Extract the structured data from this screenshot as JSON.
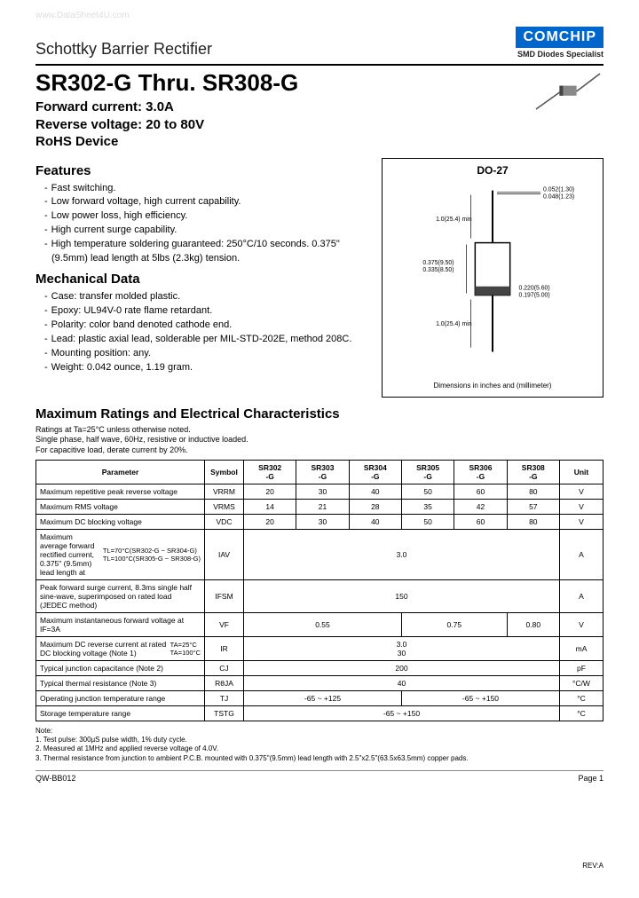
{
  "watermark": "www.DataSheet4U.com",
  "category": "Schottky Barrier Rectifier",
  "logo": "COMCHIP",
  "tagline": "SMD Diodes Specialist",
  "title": "SR302-G Thru. SR308-G",
  "spec1": "Forward current: 3.0A",
  "spec2": "Reverse voltage: 20 to 80V",
  "spec3": "RoHS Device",
  "features_head": "Features",
  "features": [
    "Fast switching.",
    "Low forward voltage, high current capability.",
    "Low power loss, high efficiency.",
    "High current surge capability.",
    "High temperature soldering guaranteed: 250°C/10 seconds. 0.375\" (9.5mm) lead length at 5lbs (2.3kg) tension."
  ],
  "mech_head": "Mechanical Data",
  "mechanical": [
    "Case: transfer molded plastic.",
    "Epoxy: UL94V-0 rate flame retardant.",
    "Polarity: color band denoted cathode end.",
    "Lead: plastic axial lead, solderable per MIL-STD-202E, method 208C.",
    "Mounting position: any.",
    "Weight: 0.042 ounce, 1.19 gram."
  ],
  "package": {
    "title": "DO-27",
    "caption": "Dimensions in inches and (millimeter)",
    "dim_top": "0.052(1.30)\n0.048(1.23)",
    "dim_lead": "1.0(25.4) min",
    "dim_body_h": "0.375(9.50)\n0.335(8.50)",
    "dim_body_w": "0.220(5.60)\n0.197(5.00)"
  },
  "ratings_head": "Maximum Ratings and Electrical Characteristics",
  "ratings_note": "Ratings at Ta=25°C unless otherwise noted.\nSingle phase, half wave, 60Hz, resistive or inductive loaded.\nFor capacitive load, derate current by 20%.",
  "table": {
    "headers": [
      "Parameter",
      "Symbol",
      "SR302\n-G",
      "SR303\n-G",
      "SR304\n-G",
      "SR305\n-G",
      "SR306\n-G",
      "SR308\n-G",
      "Unit"
    ],
    "rows": [
      {
        "param": "Maximum repetitive peak reverse voltage",
        "sym": "VRRM",
        "vals": [
          "20",
          "30",
          "40",
          "50",
          "60",
          "80"
        ],
        "unit": "V"
      },
      {
        "param": "Maximum RMS voltage",
        "sym": "VRMS",
        "vals": [
          "14",
          "21",
          "28",
          "35",
          "42",
          "57"
        ],
        "unit": "V"
      },
      {
        "param": "Maximum DC blocking voltage",
        "sym": "VDC",
        "vals": [
          "20",
          "30",
          "40",
          "50",
          "60",
          "80"
        ],
        "unit": "V"
      },
      {
        "param": "Maximum average forward rectified current, 0.375\" (9.5mm) lead length at",
        "param2": "TL=70°C(SR302-G ~ SR304-G)\nTL=100°C(SR305-G ~ SR308-G)",
        "sym": "IAV",
        "span": "3.0",
        "unit": "A"
      },
      {
        "param": "Peak forward surge current, 8.3ms single half sine-wave, superimposed on rated load (JEDEC method)",
        "sym": "IFSM",
        "span": "150",
        "unit": "A"
      },
      {
        "param": "Maximum instantaneous forward voltage at IF=3A",
        "sym": "VF",
        "vspans": [
          {
            "v": "0.55",
            "c": 3
          },
          {
            "v": "0.75",
            "c": 2
          },
          {
            "v": "0.80",
            "c": 1
          }
        ],
        "unit": "V"
      },
      {
        "param": "Maximum DC reverse current at rated DC blocking voltage (Note 1)",
        "param2": "TA=25°C\nTA=100°C",
        "sym": "IR",
        "span": "3.0\n30",
        "unit": "mA"
      },
      {
        "param": "Typical junction capacitance (Note 2)",
        "sym": "CJ",
        "span": "200",
        "unit": "pF"
      },
      {
        "param": "Typical thermal resistance (Note 3)",
        "sym": "RθJA",
        "span": "40",
        "unit": "°C/W"
      },
      {
        "param": "Operating junction temperature range",
        "sym": "TJ",
        "vspans": [
          {
            "v": "-65 ~ +125",
            "c": 3
          },
          {
            "v": "-65 ~ +150",
            "c": 3
          }
        ],
        "unit": "°C"
      },
      {
        "param": "Storage temperature range",
        "sym": "TSTG",
        "span": "-65 ~ +150",
        "unit": "°C"
      }
    ]
  },
  "notes_head": "Note:",
  "notes": [
    "1. Test pulse: 300µS pulse width, 1% duty cycle.",
    "2. Measured at 1MHz and applied reverse voltage of 4.0V.",
    "3. Thermal resistance from junction to ambient P.C.B. mounted with 0.375\"(9.5mm) lead length with 2.5\"x2.5\"(63.5x63.5mm) copper pads."
  ],
  "rev": "REV:A",
  "footer_left": "QW-BB012",
  "footer_right": "Page 1",
  "colors": {
    "logo_bg": "#0066cc",
    "text": "#222222"
  }
}
